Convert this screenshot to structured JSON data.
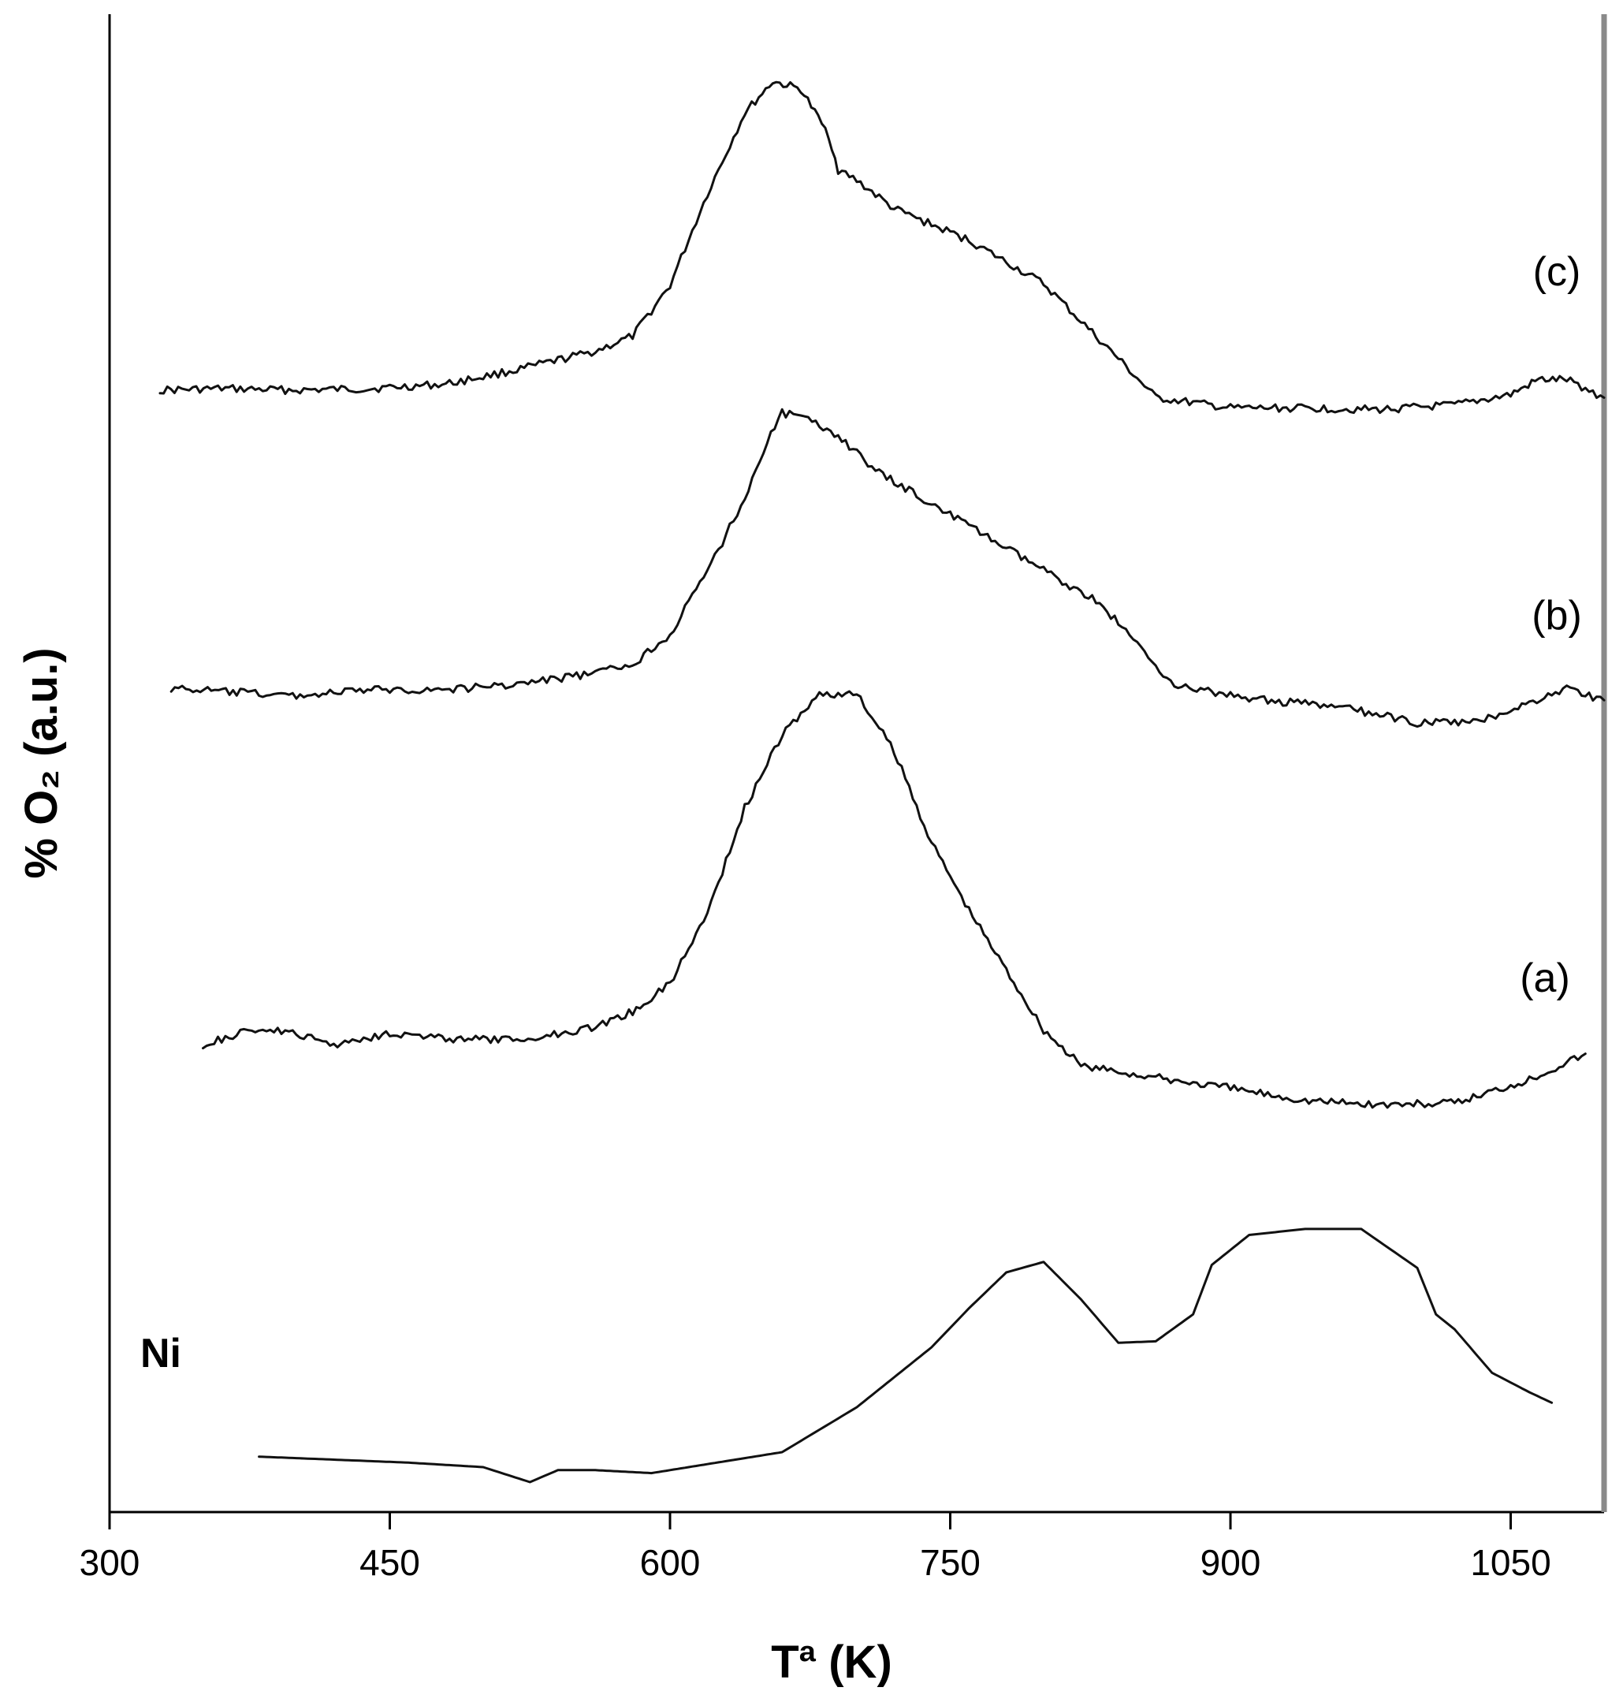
{
  "chart_data": {
    "type": "line",
    "title": "",
    "xlabel": "Tª (K)",
    "ylabel": "% O₂ (a.u.)",
    "xlim": [
      300,
      1100
    ],
    "ylim": [
      0,
      100
    ],
    "x_ticks": [
      300,
      450,
      600,
      750,
      900,
      1050
    ],
    "grid": false,
    "legend": "none",
    "y_tick_labels": "none",
    "series": [
      {
        "name": "(c)",
        "x": [
          327,
          360,
          400,
          440,
          480,
          520,
          560,
          580,
          600,
          620,
          640,
          655,
          670,
          685,
          690,
          700,
          720,
          760,
          800,
          820,
          840,
          860,
          900,
          940,
          980,
          1020,
          1050,
          1065,
          1080,
          1100
        ],
        "y": [
          74.9,
          75.0,
          74.9,
          75.0,
          75.3,
          76.3,
          77.5,
          78.5,
          81.9,
          88.0,
          93.4,
          95.5,
          95.0,
          91.9,
          89.6,
          88.9,
          87.0,
          84.9,
          82.0,
          79.5,
          77.0,
          74.4,
          73.7,
          73.7,
          73.6,
          73.9,
          74.6,
          75.6,
          75.6,
          74.4
        ]
      },
      {
        "name": "(b)",
        "x": [
          333,
          370,
          400,
          440,
          480,
          520,
          560,
          580,
          600,
          620,
          640,
          650,
          660,
          670,
          690,
          710,
          750,
          790,
          830,
          870,
          900,
          920,
          960,
          1000,
          1030,
          1060,
          1080,
          1100
        ],
        "y": [
          55.0,
          54.7,
          54.5,
          54.9,
          54.9,
          55.3,
          56.0,
          56.6,
          58.6,
          62.8,
          67.7,
          70.9,
          73.4,
          73.1,
          71.9,
          69.5,
          66.6,
          63.6,
          60.7,
          55.2,
          54.5,
          54.2,
          53.7,
          52.7,
          52.7,
          54.0,
          55.0,
          54.2
        ]
      },
      {
        "name": "(a)",
        "x": [
          350,
          380,
          400,
          420,
          450,
          480,
          520,
          560,
          580,
          600,
          620,
          640,
          660,
          680,
          700,
          720,
          740,
          760,
          780,
          800,
          820,
          860,
          900,
          940,
          980,
          1020,
          1060,
          1090
        ],
        "y": [
          31.2,
          32.3,
          31.9,
          31.2,
          32.0,
          31.6,
          31.5,
          32.4,
          33.4,
          35.3,
          40.0,
          47.0,
          51.9,
          54.6,
          54.6,
          50.8,
          44.7,
          40.2,
          36.2,
          32.2,
          29.8,
          29.0,
          28.3,
          27.5,
          27.2,
          27.3,
          28.9,
          30.6
        ]
      },
      {
        "name": "Ni",
        "x": [
          380,
          420,
          460,
          500,
          525,
          540,
          560,
          590,
          620,
          660,
          700,
          740,
          760,
          780,
          800,
          820,
          840,
          860,
          880,
          890,
          910,
          940,
          970,
          1000,
          1010,
          1020,
          1040,
          1060,
          1072
        ],
        "y": [
          3.7,
          3.5,
          3.3,
          3.0,
          2.0,
          2.8,
          2.8,
          2.6,
          3.2,
          4.0,
          7.0,
          11.0,
          13.6,
          16.0,
          16.7,
          14.2,
          11.3,
          11.4,
          13.2,
          16.5,
          18.5,
          18.9,
          18.9,
          16.3,
          13.2,
          12.2,
          9.3,
          8.0,
          7.3
        ]
      }
    ],
    "annotations": [
      "(c)",
      "(b)",
      "(a)",
      "Ni"
    ]
  }
}
